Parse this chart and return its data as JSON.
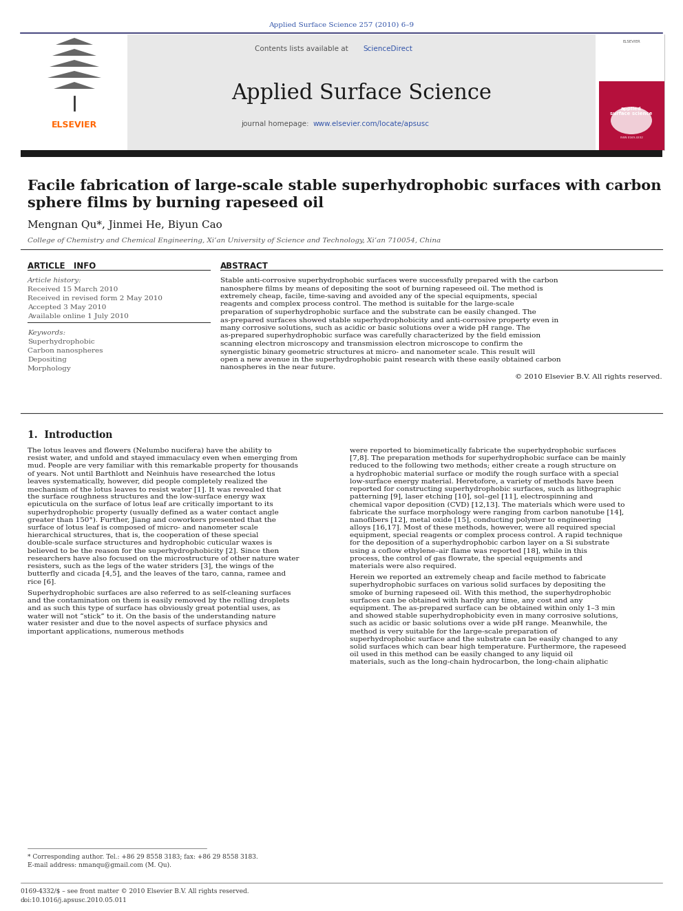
{
  "page_title_journal": "Applied Surface Science 257 (2010) 6–9",
  "journal_name": "Applied Surface Science",
  "contents_line": "Contents lists available at ",
  "science_direct": "ScienceDirect",
  "journal_homepage_prefix": "journal homepage: ",
  "journal_homepage_url": "www.elsevier.com/locate/apsusc",
  "paper_title_line1": "Facile fabrication of large-scale stable superhydrophobic surfaces with carbon",
  "paper_title_line2": "sphere films by burning rapeseed oil",
  "authors": "Mengnan Qu*, Jinmei He, Biyun Cao",
  "affiliation": "College of Chemistry and Chemical Engineering, Xi’an University of Science and Technology, Xi’an 710054, China",
  "article_info_header": "ARTICLE   INFO",
  "abstract_header": "ABSTRACT",
  "article_history_label": "Article history:",
  "received1": "Received 15 March 2010",
  "received2": "Received in revised form 2 May 2010",
  "accepted": "Accepted 3 May 2010",
  "available": "Available online 1 July 2010",
  "keywords_label": "Keywords:",
  "keywords": [
    "Superhydrophobic",
    "Carbon nanospheres",
    "Depositing",
    "Morphology"
  ],
  "abstract_text": "Stable anti-corrosive superhydrophobic surfaces were successfully prepared with the carbon nanosphere films by means of depositing the soot of burning rapeseed oil. The method is extremely cheap, facile, time-saving and avoided any of the special equipments, special reagents and complex process control. The method is suitable for the large-scale preparation of superhydrophobic surface and the substrate can be easily changed. The as-prepared surfaces showed stable superhydrophobicity and anti-corrosive property even in many corrosive solutions, such as acidic or basic solutions over a wide pH range. The as-prepared superhydrophobic surface was carefully characterized by the field emission scanning electron microscopy and transmission electron microscope to confirm the synergistic binary geometric structures at micro- and nanometer scale. This result will open a new avenue in the superhydrophobic paint research with these easily obtained carbon nanospheres in the near future.",
  "copyright": "© 2010 Elsevier B.V. All rights reserved.",
  "section1_title": "1.  Introduction",
  "intro_col1_p1": "    The lotus leaves and flowers (Nelumbo nucifera) have the ability to resist water, and unfold and stayed immaculacy even when emerging from mud. People are very familiar with this remarkable property for thousands of years. Not until Barthlott and Neinhuis have researched the lotus leaves systematically, however, did people completely realized the mechanism of the lotus leaves to resist water [1]. It was revealed that the surface roughness structures and the low-surface energy wax epicuticula on the surface of lotus leaf are critically important to its superhydrophobic property (usually defined as a water contact angle greater than 150°). Further, Jiang and coworkers presented that the surface of lotus leaf is composed of micro- and nanometer scale hierarchical structures, that is, the cooperation of these special double-scale surface structures and hydrophobic cuticular waxes is believed to be the reason for the superhydrophobicity [2]. Since then researchers have also focused on the microstructure of other nature water resisters, such as the legs of the water striders [3], the wings of the butterfly and cicada [4,5], and the leaves of the taro, canna, ramee and rice [6].",
  "intro_col1_p2": "    Superhydrophobic surfaces are also referred to as self-cleaning surfaces and the contamination on them is easily removed by the rolling droplets and as such this type of surface has obviously great potential uses, as water will not “stick” to it. On the basis of the understanding nature water resister and due to the novel aspects of surface physics and important applications, numerous methods",
  "intro_col2_p1": "were reported to biomimetically fabricate the superhydrophobic surfaces [7,8]. The preparation methods for superhydrophobic surface can be mainly reduced to the following two methods; either create a rough structure on a hydrophobic material surface or modify the rough surface with a special low-surface energy material. Heretofore, a variety of methods have been reported for constructing superhydrophobic surfaces, such as lithographic patterning [9], laser etching [10], sol–gel [11], electrospinning and chemical vapor deposition (CVD) [12,13]. The materials which were used to fabricate the surface morphology were ranging from carbon nanotube [14], nanofibers [12], metal oxide [15], conducting polymer to engineering alloys [16,17]. Most of these methods, however, were all required special equipment, special reagents or complex process control. A rapid technique for the deposition of a superhydrophobic carbon layer on a Si substrate using a coflow ethylene–air flame was reported [18], while in this process, the control of gas flowrate, the special equipments and materials were also required.",
  "intro_col2_p2": "    Herein we reported an extremely cheap and facile method to fabricate superhydrophobic surfaces on various solid surfaces by depositing the smoke of burning rapeseed oil. With this method, the superhydrophobic surfaces can be obtained with hardly any time, any cost and any equipment. The as-prepared surface can be obtained within only 1–3 min and showed stable superhydrophobicity even in many corrosive solutions, such as acidic or basic solutions over a wide pH range. Meanwhile, the method is very suitable for the large-scale preparation of superhydrophobic surface and the substrate can be easily changed to any solid surfaces which can bear high temperature. Furthermore, the rapeseed oil used in this method can be easily changed to any liquid oil materials, such as the long-chain hydrocarbon, the long-chain aliphatic",
  "footer_line1": "0169-4332/$ – see front matter © 2010 Elsevier B.V. All rights reserved.",
  "footer_line2": "doi:10.1016/j.apsusc.2010.05.011",
  "footnote1": "* Corresponding author. Tel.: +86 29 8558 3183; fax: +86 29 8558 3183.",
  "footnote2": "E-mail address: nmanqu@gmail.com (M. Qu).",
  "bg_color": "#ffffff",
  "header_bg": "#e8e8e8",
  "dark_bar_color": "#1a1a1a",
  "blue_link_color": "#3355aa",
  "orange_elsevier": "#FF6600",
  "text_color": "#000000",
  "gray_text": "#333333"
}
